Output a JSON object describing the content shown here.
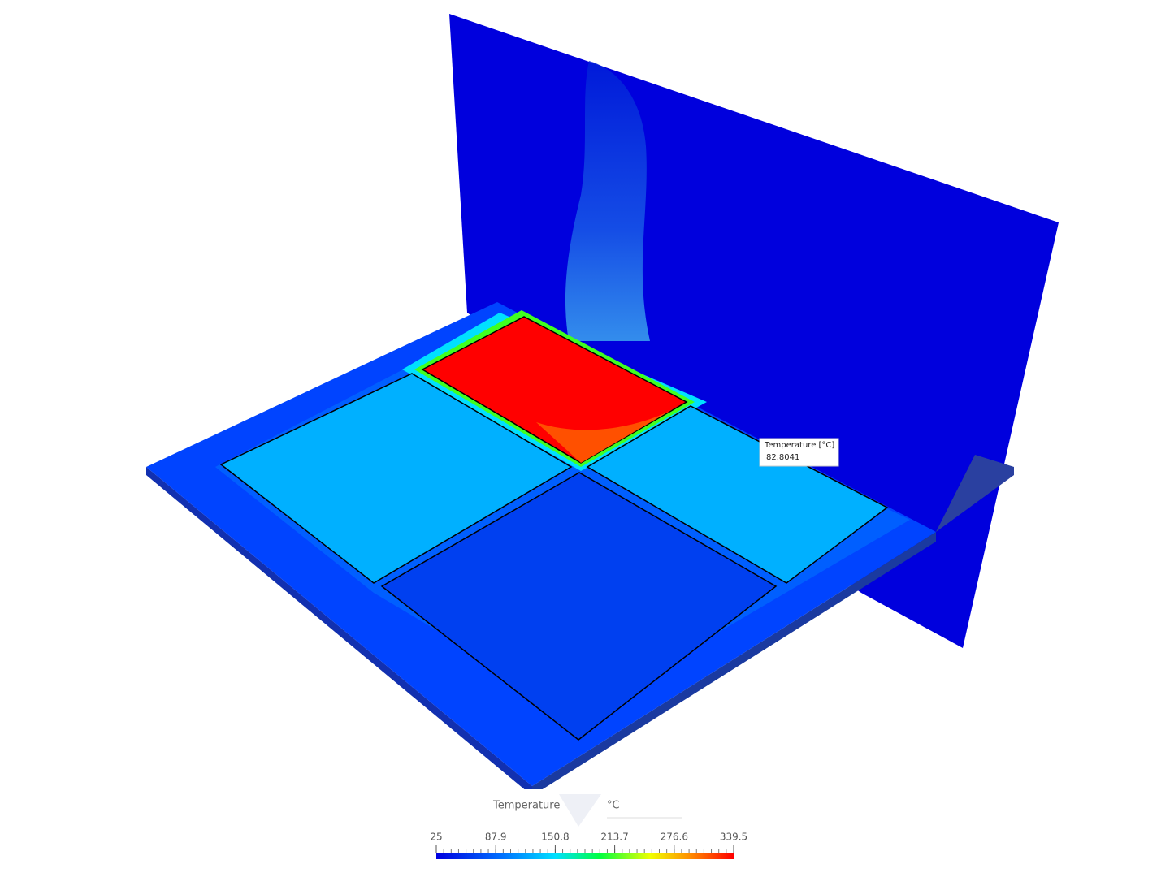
{
  "probe": {
    "label": "Temperature [°C]",
    "value": "82.8041"
  },
  "legend": {
    "title": "Temperature",
    "unit": "°C",
    "range": [
      25,
      339.5
    ],
    "ticks": [
      25,
      87.9,
      150.8,
      213.7,
      276.6,
      339.5
    ]
  }
}
